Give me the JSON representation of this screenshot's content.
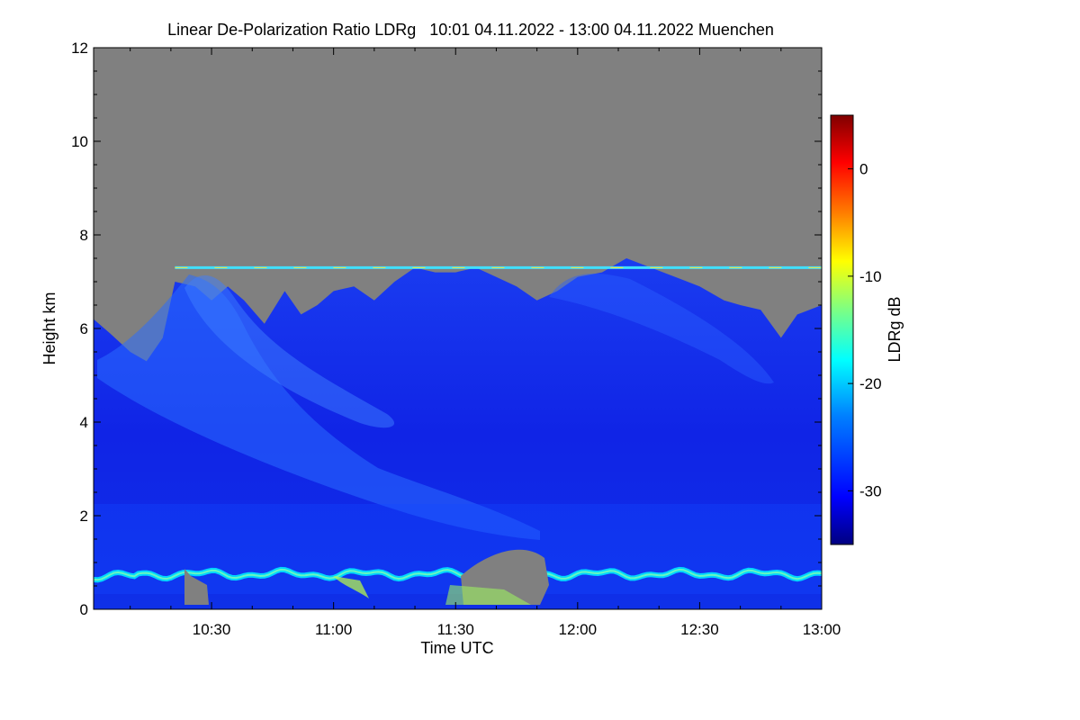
{
  "chart_data": {
    "type": "heatmap",
    "title": "Linear De-Polarization Ratio LDRg   10:01 04.11.2022 - 13:00 04.11.2022 Muenchen",
    "xlabel": "Time UTC",
    "ylabel": "Height km",
    "x_range_minutes_utc": [
      601,
      780
    ],
    "y_range_km": [
      0,
      12
    ],
    "x_ticks": [
      {
        "minute": 630,
        "label": "10:30"
      },
      {
        "minute": 660,
        "label": "11:00"
      },
      {
        "minute": 690,
        "label": "11:30"
      },
      {
        "minute": 720,
        "label": "12:00"
      },
      {
        "minute": 750,
        "label": "12:30"
      },
      {
        "minute": 780,
        "label": "13:00"
      }
    ],
    "y_ticks": [
      {
        "value": 0,
        "label": "0"
      },
      {
        "value": 2,
        "label": "2"
      },
      {
        "value": 4,
        "label": "4"
      },
      {
        "value": 6,
        "label": "6"
      },
      {
        "value": 8,
        "label": "8"
      },
      {
        "value": 10,
        "label": "10"
      },
      {
        "value": 12,
        "label": "12"
      }
    ],
    "colorbar": {
      "label": "LDRg dB",
      "range": [
        -35,
        5
      ],
      "ticks": [
        {
          "value": 0,
          "label": "0"
        },
        {
          "value": -10,
          "label": "-10"
        },
        {
          "value": -20,
          "label": "-20"
        },
        {
          "value": -30,
          "label": "-30"
        }
      ],
      "colormap": [
        "#000080",
        "#0000ff",
        "#0080ff",
        "#00ffff",
        "#80ff80",
        "#ffff00",
        "#ff8000",
        "#ff0000",
        "#800000"
      ]
    },
    "no_signal_color": "#808080",
    "signal_top_km": [
      [
        601,
        6.2
      ],
      [
        605,
        5.9
      ],
      [
        610,
        5.5
      ],
      [
        614,
        5.3
      ],
      [
        618,
        5.8
      ],
      [
        621,
        7.0
      ],
      [
        626,
        6.9
      ],
      [
        630,
        6.6
      ],
      [
        634,
        6.9
      ],
      [
        638,
        6.6
      ],
      [
        643,
        6.1
      ],
      [
        648,
        6.8
      ],
      [
        652,
        6.3
      ],
      [
        656,
        6.5
      ],
      [
        660,
        6.8
      ],
      [
        665,
        6.9
      ],
      [
        670,
        6.6
      ],
      [
        675,
        7.0
      ],
      [
        680,
        7.3
      ],
      [
        685,
        7.2
      ],
      [
        690,
        7.2
      ],
      [
        695,
        7.3
      ],
      [
        700,
        7.1
      ],
      [
        705,
        6.9
      ],
      [
        710,
        6.6
      ],
      [
        715,
        6.8
      ],
      [
        720,
        7.1
      ],
      [
        726,
        7.2
      ],
      [
        732,
        7.5
      ],
      [
        738,
        7.3
      ],
      [
        744,
        7.1
      ],
      [
        750,
        6.9
      ],
      [
        756,
        6.6
      ],
      [
        760,
        6.5
      ],
      [
        765,
        6.4
      ],
      [
        770,
        5.8
      ],
      [
        774,
        6.3
      ],
      [
        780,
        6.5
      ]
    ],
    "layers": [
      {
        "name": "cirrus fall streaks",
        "ldr_db": -27,
        "extent": "10:20-11:40, 1.5-7 km"
      },
      {
        "name": "boundary layer top",
        "ldr_db": -22,
        "height_km": 0.75
      },
      {
        "name": "horizontal line",
        "ldr_db": -15,
        "height_km": 7.3,
        "extent": "10:21-13:00"
      }
    ]
  }
}
